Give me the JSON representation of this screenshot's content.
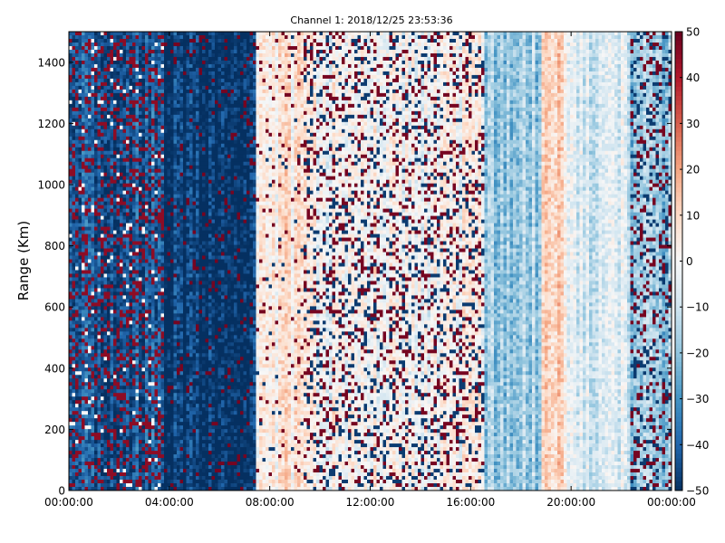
{
  "chart_data": {
    "type": "heatmap",
    "title": "Channel 1: 2018/12/25 23:53:36",
    "xlabel": "",
    "ylabel": "Range (Km)",
    "x_ticks": [
      "00:00:00",
      "04:00:00",
      "08:00:00",
      "12:00:00",
      "16:00:00",
      "20:00:00",
      "00:00:00"
    ],
    "x_range_hours": [
      0,
      24
    ],
    "y_ticks": [
      "0",
      "200",
      "400",
      "600",
      "800",
      "1000",
      "1200",
      "1400"
    ],
    "ylim": [
      0,
      1500
    ],
    "colorbar": {
      "ticks": [
        "50",
        "40",
        "30",
        "20",
        "10",
        "0",
        "−10",
        "−20",
        "−30",
        "−40",
        "−50"
      ],
      "range": [
        -50,
        50
      ],
      "colormap": "RdBu_r",
      "low_color": "#053061",
      "mid_color": "#f7f7f7",
      "high_color": "#67001f"
    },
    "segments": [
      {
        "hours": [
          0.0,
          3.8
        ],
        "pattern": "dark-blue background with scattered dark-red and white noise",
        "mean_value": -42
      },
      {
        "hours": [
          3.8,
          7.4
        ],
        "pattern": "solid dark blue with sparse dark-red streaks",
        "mean_value": -48
      },
      {
        "hours": [
          7.4,
          9.3
        ],
        "pattern": "light pink / white, sparse noise",
        "mean_value": 5
      },
      {
        "hours": [
          9.3,
          16.5
        ],
        "pattern": "white/pink background with dense dark-red and dark-blue speckle",
        "mean_value": 0
      },
      {
        "hours": [
          16.5,
          18.8
        ],
        "pattern": "light blue band",
        "mean_value": -18
      },
      {
        "hours": [
          18.8,
          19.8
        ],
        "pattern": "light pink band",
        "mean_value": 10
      },
      {
        "hours": [
          19.8,
          22.3
        ],
        "pattern": "mixed light blue and pink",
        "mean_value": -8
      },
      {
        "hours": [
          22.3,
          23.9
        ],
        "pattern": "strong mixed blue and red noise",
        "mean_value": -20
      }
    ],
    "grid": false
  }
}
